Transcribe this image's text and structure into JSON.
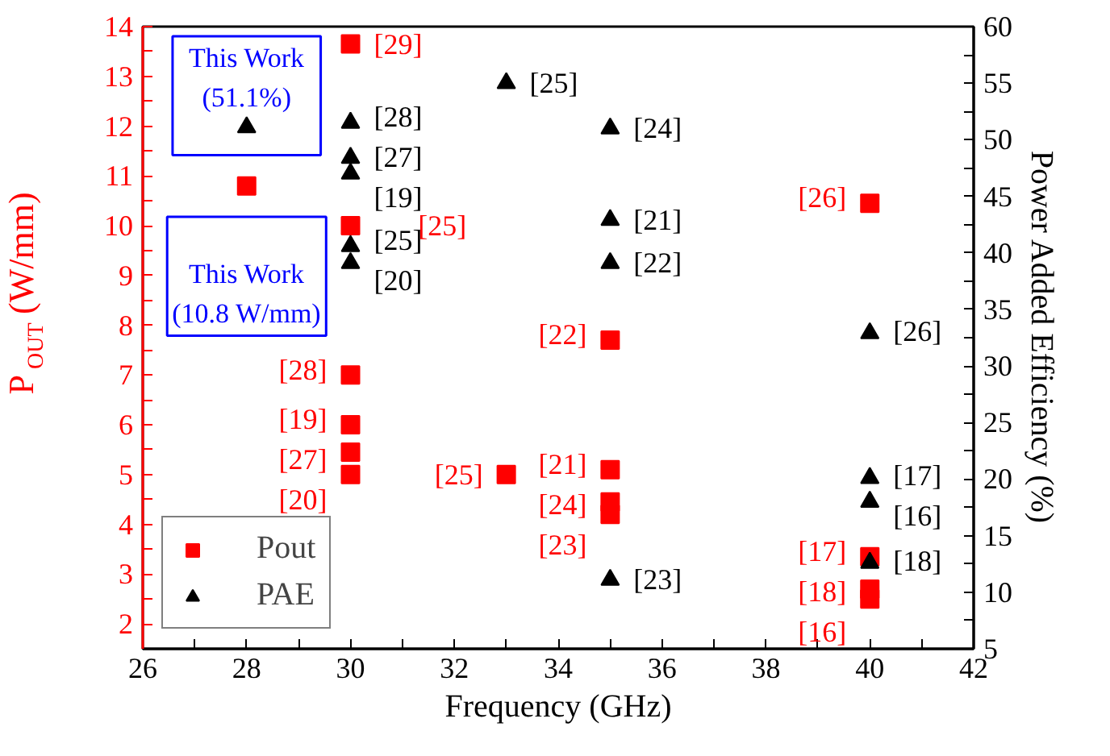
{
  "chart_data": {
    "type": "scatter",
    "xlabel": "Frequency (GHz)",
    "ylabel": "P$_{OUT}$ (W/mm)",
    "y2label": "Power Added Efficiency (%)",
    "xlim": [
      26,
      42
    ],
    "xticks": [
      26,
      {
        "value": 27,
        "label": null
      },
      28,
      {
        "value": 29,
        "label": null
      },
      30,
      {
        "value": 31,
        "label": null
      },
      32,
      {
        "value": 33,
        "label": null
      },
      34,
      {
        "value": 35,
        "label": null
      },
      36,
      {
        "value": 37,
        "label": null
      },
      38,
      {
        "value": 39,
        "label": null
      },
      40,
      {
        "value": 41,
        "label": null
      },
      42
    ],
    "ylim": [
      1.5,
      14
    ],
    "yticks": [
      2,
      {
        "value": 2.5,
        "label": null
      },
      3,
      {
        "value": 3.5,
        "label": null
      },
      4,
      {
        "value": 4.5,
        "label": null
      },
      5,
      {
        "value": 5.5,
        "label": null
      },
      6,
      {
        "value": 6.5,
        "label": null
      },
      7,
      {
        "value": 7.5,
        "label": null
      },
      8,
      {
        "value": 8.5,
        "label": null
      },
      9,
      {
        "value": 9.5,
        "label": null
      },
      10,
      {
        "value": 10.5,
        "label": null
      },
      11,
      {
        "value": 11.5,
        "label": null
      },
      12,
      {
        "value": 12.5,
        "label": null
      },
      13,
      {
        "value": 13.5,
        "label": null
      },
      14
    ],
    "y2lim": [
      5,
      60
    ],
    "y2ticks": [
      5,
      {
        "value": 7.5,
        "label": null
      },
      10,
      {
        "value": 12.5,
        "label": null
      },
      15,
      {
        "value": 17.5,
        "label": null
      },
      20,
      {
        "value": 22.5,
        "label": null
      },
      25,
      {
        "value": 27.5,
        "label": null
      },
      30,
      {
        "value": 32.5,
        "label": null
      },
      35,
      {
        "value": 37.5,
        "label": null
      },
      40,
      {
        "value": 42.5,
        "label": null
      },
      45,
      {
        "value": 47.5,
        "label": null
      },
      50,
      {
        "value": 52.5,
        "label": null
      },
      55,
      {
        "value": 57.5,
        "label": null
      },
      60
    ],
    "grid": false,
    "legend": "bottom left",
    "series": [
      {
        "name": "Pout",
        "color": "#ff0000",
        "marker": "square",
        "x": [
          28,
          30,
          30,
          30,
          30,
          30,
          30,
          33,
          35,
          35,
          35,
          35,
          40,
          40,
          40,
          40
        ],
        "values": [
          10.8,
          13.65,
          10.0,
          7.0,
          6.0,
          5.45,
          5.0,
          5.0,
          7.7,
          5.1,
          4.45,
          4.2,
          10.45,
          3.35,
          2.7,
          2.5
        ]
      },
      {
        "name": "PAE",
        "color": "#000000",
        "marker": "triangle",
        "axis": "y2",
        "x": [
          28,
          30,
          30,
          30,
          30,
          30,
          33,
          35,
          35,
          35,
          35,
          40,
          40,
          40,
          40
        ],
        "values": [
          51.1,
          51.5,
          48.4,
          47.0,
          40.6,
          39.1,
          55,
          51,
          42.9,
          39.1,
          11.1,
          32.9,
          20.1,
          18,
          12.6
        ]
      }
    ],
    "annotations": [
      "This Work\n(51.1%)",
      "This Work\n(10.8 W/mm)",
      {
        "text": "[29]",
        "x": 30,
        "y": 13.65
      },
      {
        "text": "[25]",
        "x": 30,
        "y": 10.0
      },
      {
        "text": "[28]",
        "x": 30,
        "y": 7.0
      },
      {
        "text": "[19]",
        "x": 30,
        "y": 6.0
      },
      {
        "text": "[27]",
        "x": 30,
        "y": 5.45
      },
      {
        "text": "[20]",
        "x": 30,
        "y": 5.0
      },
      {
        "text": "[25]",
        "x": 33,
        "y": 5.0
      },
      {
        "text": "[22]",
        "x": 35,
        "y": 7.7
      },
      {
        "text": "[21]",
        "x": 35,
        "y": 5.1
      },
      {
        "text": "[24]",
        "x": 35,
        "y": 4.45
      },
      {
        "text": "[23]",
        "x": 35,
        "y": 4.2
      },
      {
        "text": "[26]",
        "x": 40,
        "y": 10.45
      },
      {
        "text": "[17]",
        "x": 40,
        "y": 3.35
      },
      {
        "text": "[18]",
        "x": 40,
        "y": 2.7
      },
      {
        "text": "[16]",
        "x": 40,
        "y": 2.5
      },
      "[28]",
      "[27]",
      "[19]",
      "[25]",
      "[20]",
      "[25]",
      "[24]",
      "[21]",
      "[22]",
      "[23]",
      "[26]",
      "[17]",
      "[16]",
      "[18]"
    ]
  }
}
